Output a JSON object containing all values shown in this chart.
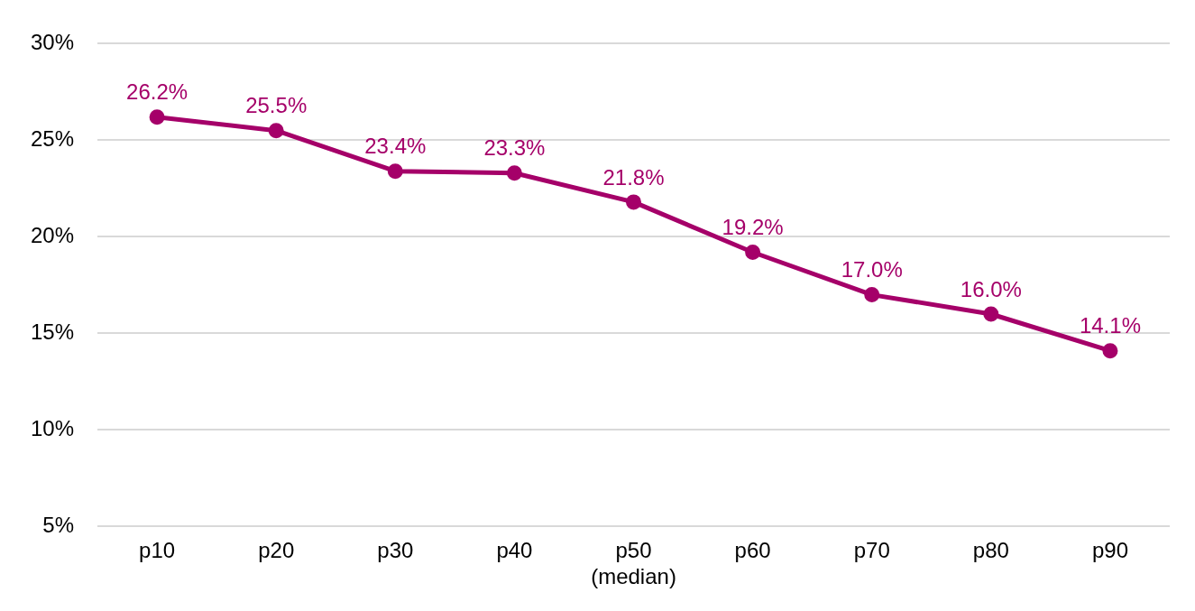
{
  "chart_data": {
    "type": "line",
    "categories": [
      "p10",
      "p20",
      "p30",
      "p40",
      "p50\n(median)",
      "p60",
      "p70",
      "p80",
      "p90"
    ],
    "series": [
      {
        "color": "#a50069",
        "values": [
          26.2,
          25.5,
          23.4,
          23.3,
          21.8,
          19.2,
          17.0,
          16.0,
          14.1
        ],
        "value_labels": [
          "26.2%",
          "25.5%",
          "23.4%",
          "23.3%",
          "21.8%",
          "19.2%",
          "17.0%",
          "16.0%",
          "14.1%"
        ]
      }
    ],
    "ylim": [
      5,
      30
    ],
    "yticks": [
      {
        "value": 5,
        "label": "5%"
      },
      {
        "value": 10,
        "label": "10%"
      },
      {
        "value": 15,
        "label": "15%"
      },
      {
        "value": 20,
        "label": "20%"
      },
      {
        "value": 25,
        "label": "25%"
      },
      {
        "value": 30,
        "label": "30%"
      }
    ],
    "grid": "y",
    "legend": false,
    "marker": "circle",
    "line_style": "solid"
  }
}
